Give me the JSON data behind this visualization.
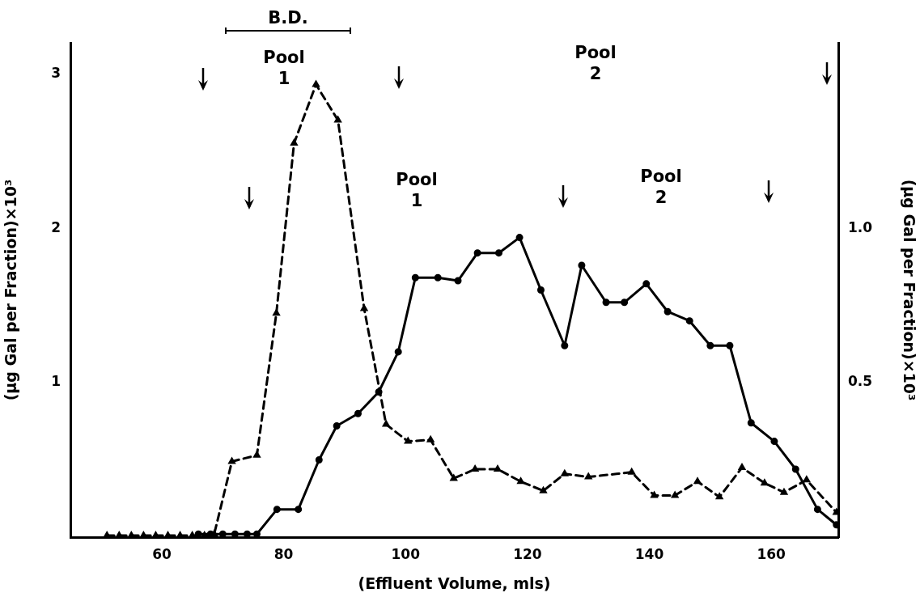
{
  "chart_data": {
    "type": "line",
    "xlabel": "(Effluent Volume, mls)",
    "ylabel": "(μg Gal per Fraction)×10³",
    "y2label": "(μg Gal per Fraction)×10³",
    "xlim": [
      45,
      171
    ],
    "xticks": [
      60,
      80,
      100,
      120,
      140,
      160
    ],
    "ylim": [
      0,
      3.2
    ],
    "yticks": [
      1,
      2,
      3
    ],
    "y2lim": [
      0,
      1.6
    ],
    "y2ticks": [
      {
        "value": 0.5,
        "label": "0.5"
      },
      {
        "value": 1.0,
        "label": "1.0"
      }
    ],
    "grid": false,
    "legend": false,
    "series": [
      {
        "color": "#000000",
        "marker": "triangle",
        "line_style": "dashed",
        "x": [
          51,
          53,
          55,
          57,
          59,
          61,
          63,
          65,
          67,
          68.6,
          71.5,
          75.6,
          78.8,
          81.7,
          85.3,
          88.9,
          93.2,
          96.8,
          100.4,
          104.1,
          107.9,
          111.4,
          115.1,
          118.9,
          122.6,
          126.1,
          130.0,
          137.1,
          140.8,
          144.2,
          147.9,
          151.5,
          155.2,
          158.9,
          162.1,
          165.8,
          170.7
        ],
        "values": [
          0.01,
          0.01,
          0.01,
          0.01,
          0.01,
          0.01,
          0.01,
          0.01,
          0.01,
          0.02,
          0.49,
          0.53,
          1.45,
          2.55,
          2.93,
          2.7,
          1.48,
          0.73,
          0.62,
          0.63,
          0.38,
          0.44,
          0.44,
          0.36,
          0.3,
          0.41,
          0.39,
          0.42,
          0.27,
          0.27,
          0.36,
          0.26,
          0.45,
          0.35,
          0.29,
          0.37,
          0.16
        ]
      },
      {
        "color": "#000000",
        "marker": "circle",
        "line_style": "solid",
        "axis": "y2",
        "x": [
          66,
          68,
          70,
          72,
          74,
          75.6,
          78.9,
          82.4,
          85.8,
          88.7,
          92.2,
          95.6,
          98.8,
          101.6,
          105.3,
          108.6,
          111.8,
          115.3,
          118.7,
          122.2,
          126.1,
          128.9,
          132.9,
          135.9,
          139.5,
          143.0,
          146.6,
          150.0,
          153.2,
          156.7,
          160.5,
          164.0,
          167.6,
          170.7
        ],
        "values": [
          0.01,
          0.01,
          0.01,
          0.01,
          0.01,
          0.01,
          0.09,
          0.09,
          0.25,
          0.36,
          0.4,
          0.47,
          0.6,
          0.84,
          0.84,
          0.83,
          0.92,
          0.92,
          0.97,
          0.8,
          0.62,
          0.88,
          0.76,
          0.76,
          0.82,
          0.73,
          0.7,
          0.62,
          0.62,
          0.37,
          0.31,
          0.22,
          0.09,
          0.04
        ]
      }
    ],
    "annotations": [
      "B.D.",
      "Pool 1",
      "Pool 2",
      "Pool 1",
      "Pool 2"
    ]
  }
}
